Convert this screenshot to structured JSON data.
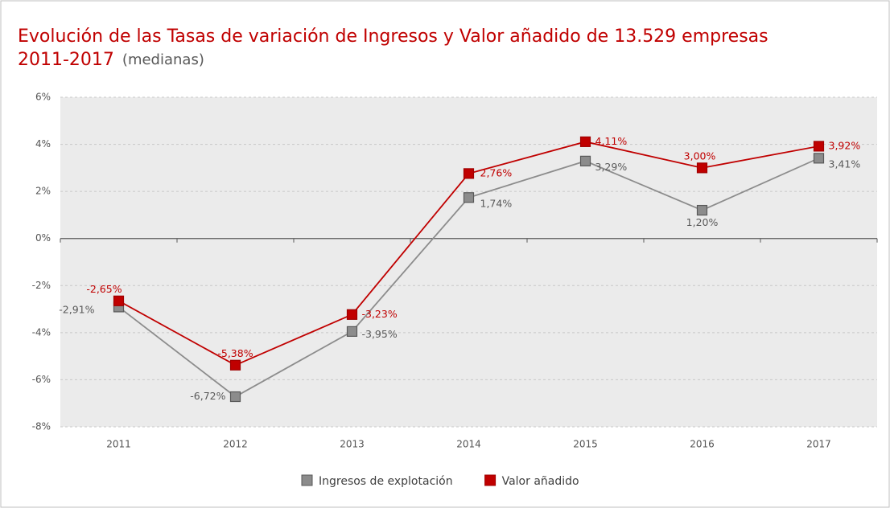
{
  "chart_data": {
    "type": "line",
    "title": [
      "Evolución de las Tasas de variación de Ingresos y Valor añadido de 13.529 empresas",
      "2011-2017"
    ],
    "subtitle": "(medianas)",
    "categories": [
      "2011",
      "2012",
      "2013",
      "2014",
      "2015",
      "2016",
      "2017"
    ],
    "series": [
      {
        "name": "Ingresos de explotación",
        "color": "#8c8c8c",
        "values": [
          -2.91,
          -6.72,
          -3.95,
          1.74,
          3.29,
          1.2,
          3.41
        ],
        "value_labels": [
          "-2,91%",
          "-6,72%",
          "-3,95%",
          "1,74%",
          "3,29%",
          "1,20%",
          "3,41%"
        ]
      },
      {
        "name": "Valor añadido",
        "color": "#c00000",
        "values": [
          -2.65,
          -5.38,
          -3.23,
          2.76,
          4.11,
          3.0,
          3.92
        ],
        "value_labels": [
          "-2,65%",
          "-5,38%",
          "-3,23%",
          "2,76%",
          "4,11%",
          "3,00%",
          "3,92%"
        ]
      }
    ],
    "ylim": [
      -8,
      6
    ],
    "yticks": [
      {
        "value": -8,
        "label": "-8%"
      },
      {
        "value": -6,
        "label": "-6%"
      },
      {
        "value": -4,
        "label": "-4%"
      },
      {
        "value": -2,
        "label": "-2%"
      },
      {
        "value": 0,
        "label": "0%"
      },
      {
        "value": 2,
        "label": "2%"
      },
      {
        "value": 4,
        "label": "4%"
      },
      {
        "value": 6,
        "label": "6%"
      }
    ],
    "grid": true,
    "legend": "bottom"
  }
}
